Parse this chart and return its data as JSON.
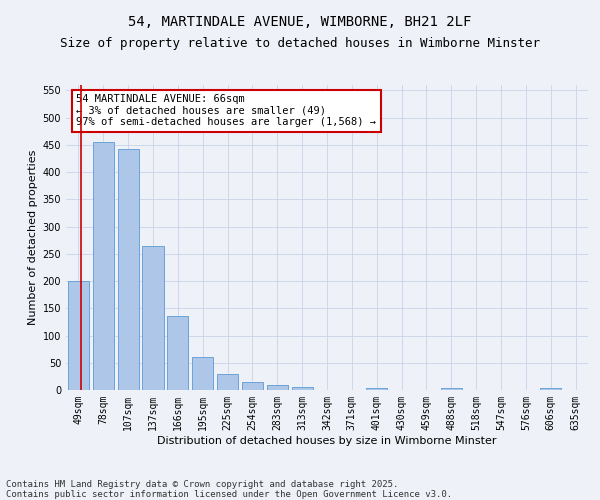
{
  "title": "54, MARTINDALE AVENUE, WIMBORNE, BH21 2LF",
  "subtitle": "Size of property relative to detached houses in Wimborne Minster",
  "xlabel": "Distribution of detached houses by size in Wimborne Minster",
  "ylabel": "Number of detached properties",
  "categories": [
    "49sqm",
    "78sqm",
    "107sqm",
    "137sqm",
    "166sqm",
    "195sqm",
    "225sqm",
    "254sqm",
    "283sqm",
    "313sqm",
    "342sqm",
    "371sqm",
    "401sqm",
    "430sqm",
    "459sqm",
    "488sqm",
    "518sqm",
    "547sqm",
    "576sqm",
    "606sqm",
    "635sqm"
  ],
  "values": [
    200,
    455,
    443,
    265,
    135,
    61,
    30,
    15,
    10,
    6,
    0,
    0,
    4,
    0,
    0,
    3,
    0,
    0,
    0,
    3,
    0
  ],
  "bar_color": "#aec6e8",
  "bar_edge_color": "#5b9bd5",
  "marker_line_color": "#cc0000",
  "annotation_title": "54 MARTINDALE AVENUE: 66sqm",
  "annotation_line2": "← 3% of detached houses are smaller (49)",
  "annotation_line3": "97% of semi-detached houses are larger (1,568) →",
  "annotation_box_color": "#cc0000",
  "ylim": [
    0,
    560
  ],
  "yticks": [
    0,
    50,
    100,
    150,
    200,
    250,
    300,
    350,
    400,
    450,
    500,
    550
  ],
  "footer_line1": "Contains HM Land Registry data © Crown copyright and database right 2025.",
  "footer_line2": "Contains public sector information licensed under the Open Government Licence v3.0.",
  "background_color": "#eef2f8",
  "grid_color": "#c8d4e8",
  "title_fontsize": 10,
  "subtitle_fontsize": 9,
  "axis_label_fontsize": 8,
  "tick_fontsize": 7,
  "footer_fontsize": 6.5,
  "annotation_fontsize": 7.5
}
